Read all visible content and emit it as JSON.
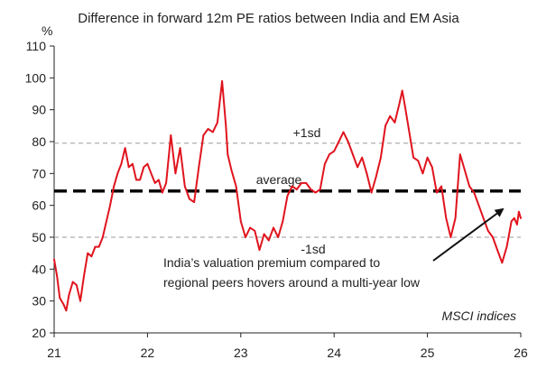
{
  "chart_data": {
    "type": "line",
    "title": "Difference in forward 12m PE ratios between India and EM Asia",
    "ylabel": "%",
    "xlim": [
      21,
      26
    ],
    "ylim": [
      20,
      110
    ],
    "xticks": [
      "21",
      "22",
      "23",
      "24",
      "25",
      "26"
    ],
    "yticks": [
      20,
      30,
      40,
      50,
      60,
      70,
      80,
      90,
      100,
      110
    ],
    "series": [
      {
        "color": "#e0141e",
        "x": [
          21.0,
          21.03,
          21.06,
          21.1,
          21.13,
          21.16,
          21.2,
          21.24,
          21.28,
          21.32,
          21.36,
          21.4,
          21.44,
          21.48,
          21.52,
          21.56,
          21.6,
          21.64,
          21.68,
          21.72,
          21.76,
          21.8,
          21.84,
          21.88,
          21.92,
          21.96,
          22.0,
          22.04,
          22.08,
          22.12,
          22.16,
          22.2,
          22.25,
          22.3,
          22.35,
          22.4,
          22.45,
          22.5,
          22.55,
          22.6,
          22.65,
          22.7,
          22.75,
          22.8,
          22.84,
          22.86,
          22.9,
          22.95,
          23.0,
          23.05,
          23.1,
          23.15,
          23.2,
          23.25,
          23.3,
          23.35,
          23.4,
          23.45,
          23.5,
          23.55,
          23.6,
          23.65,
          23.7,
          23.75,
          23.8,
          23.85,
          23.9,
          23.95,
          24.0,
          24.05,
          24.1,
          24.15,
          24.2,
          24.25,
          24.3,
          24.35,
          24.4,
          24.45,
          24.5,
          24.55,
          24.6,
          24.65,
          24.7,
          24.73,
          24.76,
          24.8,
          24.85,
          24.9,
          24.95,
          25.0,
          25.05,
          25.1,
          25.15,
          25.2,
          25.25,
          25.3,
          25.35,
          25.4,
          25.45,
          25.5,
          25.55,
          25.6,
          25.65,
          25.7,
          25.75,
          25.8,
          25.85,
          25.9,
          25.93,
          25.96,
          25.98,
          26.0
        ],
        "values": [
          43,
          38,
          31,
          29,
          27,
          32,
          36,
          35,
          30,
          38,
          45,
          44,
          47,
          47,
          50,
          55,
          60,
          66,
          70,
          73,
          78,
          72,
          73,
          68,
          68,
          72,
          73,
          70,
          67,
          68,
          64,
          67,
          82,
          70,
          78,
          66,
          62,
          61,
          72,
          82,
          84,
          83,
          86,
          99,
          85,
          76,
          71,
          66,
          55,
          50,
          53,
          52,
          46,
          51,
          49,
          53,
          50,
          55,
          63,
          66,
          65,
          67,
          67,
          65,
          64,
          65,
          73,
          76,
          77,
          80,
          83,
          80,
          76,
          72,
          75,
          70,
          64,
          69,
          75,
          85,
          88,
          86,
          92,
          96,
          91,
          84,
          75,
          74,
          70,
          75,
          72,
          64,
          66,
          56,
          50,
          56,
          76,
          71,
          66,
          64,
          60,
          56,
          52,
          50,
          46,
          42,
          47,
          55,
          56,
          54,
          58,
          56
        ]
      }
    ],
    "reference_lines": [
      {
        "label": "+1sd",
        "value": 79.5,
        "style": "dashed-grey"
      },
      {
        "label": "average",
        "value": 64.5,
        "style": "dashed-black"
      },
      {
        "label": "-1sd",
        "value": 50,
        "style": "dashed-grey"
      }
    ],
    "annotations": {
      "line1": "India’s valuation premium compared to",
      "line2": "regional peers hovers around a multi-year low",
      "source": "MSCI indices"
    }
  }
}
